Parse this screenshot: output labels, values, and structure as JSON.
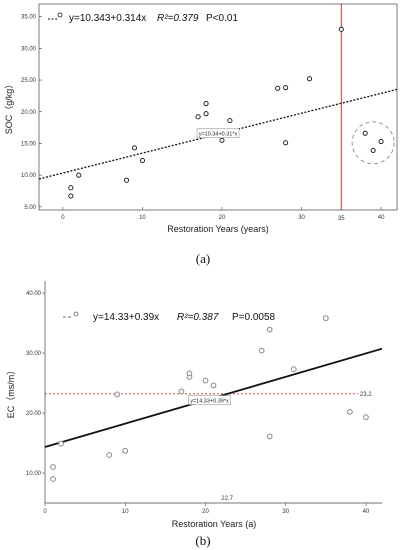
{
  "chart_data": [
    {
      "type": "scatter",
      "panel_label": "(a)",
      "ylabel": "SOC（g/kg）",
      "xlabel": "Restoration Years (years)",
      "xlim": [
        -3,
        42
      ],
      "ylim": [
        4.5,
        37
      ],
      "xticks": [
        0,
        10,
        20,
        30,
        40
      ],
      "yticks": [
        5.0,
        10.0,
        15.0,
        20.0,
        25.0,
        30.0,
        35.0
      ],
      "ytick_labels": [
        "5.00",
        "10.00",
        "15.00",
        "20.00",
        "25.00",
        "30.00",
        "35.00"
      ],
      "points": [
        {
          "x": 1,
          "y": 6.7
        },
        {
          "x": 1,
          "y": 8.0
        },
        {
          "x": 2,
          "y": 10.0
        },
        {
          "x": 8,
          "y": 9.2
        },
        {
          "x": 9,
          "y": 14.3
        },
        {
          "x": 10,
          "y": 12.3
        },
        {
          "x": 17,
          "y": 19.2
        },
        {
          "x": 18,
          "y": 19.7
        },
        {
          "x": 18,
          "y": 21.3
        },
        {
          "x": 20,
          "y": 15.5
        },
        {
          "x": 21,
          "y": 18.6
        },
        {
          "x": 27,
          "y": 23.7
        },
        {
          "x": 28,
          "y": 23.8
        },
        {
          "x": 28,
          "y": 15.1
        },
        {
          "x": 31,
          "y": 25.2
        },
        {
          "x": 35,
          "y": 33.0
        },
        {
          "x": 38,
          "y": 16.6
        },
        {
          "x": 39,
          "y": 13.9
        },
        {
          "x": 40,
          "y": 15.3
        }
      ],
      "fit": {
        "intercept": 10.343,
        "slope": 0.314,
        "style": "dotted"
      },
      "legend_equation": "y=10.343+0.314x",
      "legend_r2": "R²=0.379",
      "legend_p": "P<0.01",
      "inline_label": "y=10.34+0.31*x",
      "vline": {
        "x": 35,
        "label": "35",
        "color": "#c0392b"
      },
      "highlight_circle": {
        "cx": 39,
        "cy": 15.1
      }
    },
    {
      "type": "scatter",
      "panel_label": "(b)",
      "ylabel": "EC（ms/m）",
      "xlabel": "Restoration Years (a)",
      "xlim": [
        0,
        42
      ],
      "ylim": [
        5,
        42
      ],
      "xticks": [
        0,
        10,
        20,
        30,
        40
      ],
      "yticks": [
        10,
        20,
        30,
        40
      ],
      "ytick_labels": [
        "10.00",
        "20.00",
        "30.00",
        "40.00"
      ],
      "points": [
        {
          "x": 1,
          "y": 9.0
        },
        {
          "x": 1,
          "y": 11.0
        },
        {
          "x": 2,
          "y": 14.9
        },
        {
          "x": 8,
          "y": 13.0
        },
        {
          "x": 9,
          "y": 23.1
        },
        {
          "x": 10,
          "y": 13.7
        },
        {
          "x": 17,
          "y": 23.6
        },
        {
          "x": 18,
          "y": 26.0
        },
        {
          "x": 18,
          "y": 26.6
        },
        {
          "x": 20,
          "y": 25.4
        },
        {
          "x": 21,
          "y": 24.6
        },
        {
          "x": 27,
          "y": 30.4
        },
        {
          "x": 28,
          "y": 33.9
        },
        {
          "x": 28,
          "y": 16.1
        },
        {
          "x": 31,
          "y": 27.3
        },
        {
          "x": 35,
          "y": 35.8
        },
        {
          "x": 38,
          "y": 20.2
        },
        {
          "x": 40,
          "y": 19.3
        }
      ],
      "fit": {
        "intercept": 14.33,
        "slope": 0.39,
        "style": "solid"
      },
      "legend_equation": "y=14.33+0.39x",
      "legend_r2": "R²=0.387",
      "legend_p": "P=0.0058",
      "inline_label": "y=14.33+0.39*x",
      "hline": {
        "y": 23.2,
        "label": "23.2",
        "color": "#c0392b"
      },
      "x_marker": {
        "x": 22.7,
        "label": "22.7"
      }
    }
  ],
  "colors": {
    "fit_line": "#111111",
    "reference": "#c0392b",
    "marker_a": "#111111",
    "marker_b": "#888888",
    "highlight": "#888888"
  }
}
